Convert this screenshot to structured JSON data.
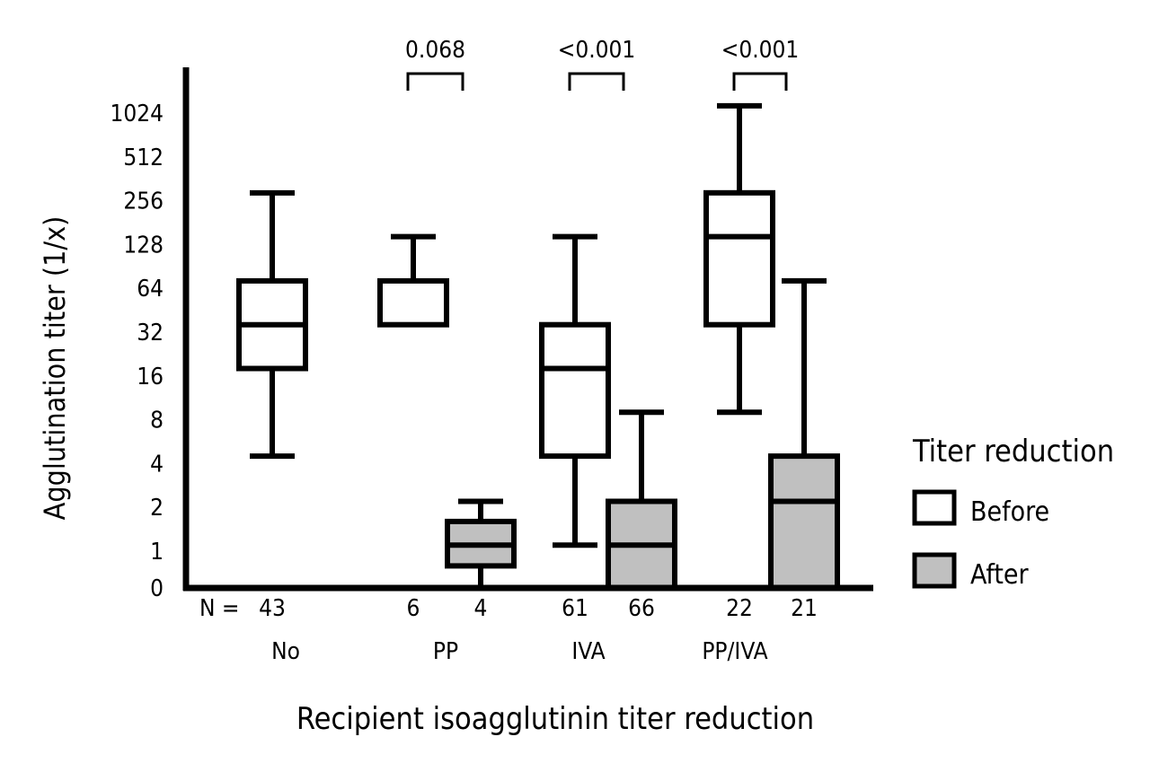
{
  "chart_data": {
    "type": "box",
    "ylabel": "Agglutination titer (1/x)",
    "xlabel": "Recipient isoagglutinin titer reduction",
    "y_ticks": [
      "0",
      "1",
      "2",
      "4",
      "8",
      "16",
      "32",
      "64",
      "128",
      "256",
      "512",
      "1024"
    ],
    "scale": "log2",
    "n_prefix": "N =",
    "legend": {
      "title": "Titer reduction",
      "items": [
        {
          "label": "Before",
          "color": "#ffffff"
        },
        {
          "label": "After",
          "color": "#c0c0c0"
        }
      ]
    },
    "groups": [
      {
        "label": "No"
      },
      {
        "label": "PP"
      },
      {
        "label": "IVA"
      },
      {
        "label": "PP/IVA"
      }
    ],
    "boxes": [
      {
        "group": "No",
        "series": "Before",
        "n": "43",
        "whisker_low": 4.5,
        "q1": 18,
        "median": 36,
        "q3": 72,
        "whisker_high": 290
      },
      {
        "group": "PP",
        "series": "Before",
        "n": "6",
        "whisker_low": null,
        "q1": 36,
        "median": null,
        "q3": 72,
        "whisker_high": 145
      },
      {
        "group": "PP",
        "series": "After",
        "n": "4",
        "whisker_low": 0,
        "q1": 0.6,
        "median": 1.1,
        "q3": 1.6,
        "whisker_high": 2.2
      },
      {
        "group": "IVA",
        "series": "Before",
        "n": "61",
        "whisker_low": 1.1,
        "q1": 4.5,
        "median": 18,
        "q3": 36,
        "whisker_high": 145
      },
      {
        "group": "IVA",
        "series": "After",
        "n": "66",
        "whisker_low": null,
        "q1": 0,
        "median": 1.1,
        "q3": 2.2,
        "whisker_high": 9
      },
      {
        "group": "PP/IVA",
        "series": "Before",
        "n": "22",
        "whisker_low": 9,
        "q1": 36,
        "median": 145,
        "q3": 290,
        "whisker_high": 1150
      },
      {
        "group": "PP/IVA",
        "series": "After",
        "n": "21",
        "whisker_low": null,
        "q1": 0,
        "median": 2.2,
        "q3": 4.5,
        "whisker_high": 72
      }
    ],
    "comparisons": [
      {
        "group": "PP",
        "p": "0.068"
      },
      {
        "group": "IVA",
        "p": "<0.001"
      },
      {
        "group": "PP/IVA",
        "p": "<0.001"
      }
    ]
  }
}
